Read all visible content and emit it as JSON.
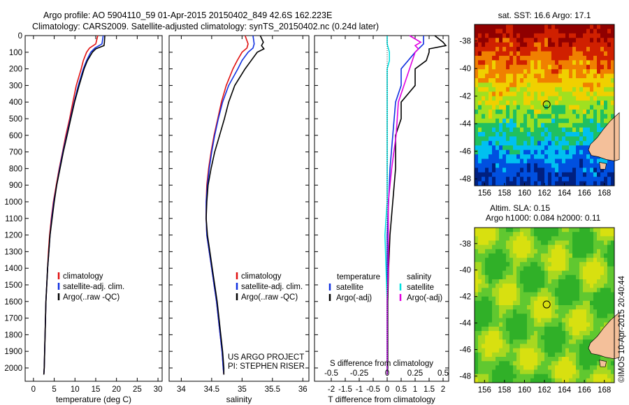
{
  "header": {
    "line1": "Argo profile: AO 5904110_59 01-Apr-2015 20150402_849 42.6S 162.223E",
    "line2": "Climatology: CARS2009. Satellite-adjusted climatology: synTS_20150402.nc (0.24d later)"
  },
  "colors": {
    "climatology": "#e01010",
    "satellite_temperature": "#1030e0",
    "argo": "#000000",
    "satellite_salinity": "#00e0e0",
    "argo_salinity_diff": "#e000e0",
    "land": "#f4c09a"
  },
  "chart_data": [
    {
      "type": "line",
      "id": "temperature",
      "xlabel": "temperature (deg C)",
      "ylabel": "",
      "xlim": [
        -2,
        31
      ],
      "ylim": [
        2080,
        0
      ],
      "xticks": [
        "0",
        "5",
        "10",
        "15",
        "20",
        "25",
        "30"
      ],
      "yticks": [
        "0",
        "100",
        "200",
        "300",
        "400",
        "500",
        "600",
        "700",
        "800",
        "900",
        "1000",
        "1100",
        "1200",
        "1300",
        "1400",
        "1500",
        "1600",
        "1700",
        "1800",
        "1900",
        "2000"
      ],
      "legend": [
        "climatology",
        "satellite-adj. clim.",
        "Argo(..raw -QC)"
      ],
      "series": [
        {
          "name": "climatology",
          "color": "#e01010",
          "depth": [
            0,
            50,
            75,
            100,
            150,
            200,
            300,
            400,
            500,
            600,
            700,
            800,
            900,
            1000,
            1100,
            1200,
            1300,
            1400,
            1500,
            1600,
            1700,
            1800,
            1900,
            2000,
            2040
          ],
          "values": [
            15.5,
            15.0,
            13.5,
            12.8,
            12.0,
            11.5,
            10.3,
            9.5,
            8.7,
            7.8,
            7.0,
            6.2,
            5.5,
            4.8,
            4.3,
            3.9,
            3.6,
            3.4,
            3.2,
            3.0,
            2.9,
            2.8,
            2.7,
            2.6,
            2.5
          ]
        },
        {
          "name": "satellite-adj. clim.",
          "color": "#1030e0",
          "depth": [
            0,
            50,
            75,
            100,
            150,
            200,
            300,
            400,
            500,
            600,
            700,
            800,
            900,
            1000,
            1100,
            1200,
            1300,
            1400,
            1500,
            1600,
            1700,
            1800,
            1900,
            2000,
            2040
          ],
          "values": [
            16.8,
            16.5,
            14.8,
            13.8,
            12.8,
            12.0,
            10.8,
            9.8,
            8.9,
            8.0,
            7.1,
            6.3,
            5.6,
            4.9,
            4.4,
            4.0,
            3.7,
            3.4,
            3.2,
            3.0,
            2.9,
            2.8,
            2.7,
            2.6,
            2.5
          ]
        },
        {
          "name": "Argo(..raw -QC)",
          "color": "#000000",
          "depth": [
            0,
            40,
            60,
            80,
            100,
            150,
            200,
            300,
            400,
            500,
            600,
            700,
            800,
            900,
            1000,
            1100,
            1200,
            1300,
            1400,
            1500,
            1600,
            1700,
            1800,
            1900,
            2000,
            2040
          ],
          "values": [
            17.2,
            17.1,
            17.0,
            15.0,
            14.2,
            13.0,
            12.2,
            11.0,
            9.9,
            9.0,
            8.1,
            7.2,
            6.4,
            5.6,
            5.0,
            4.5,
            4.0,
            3.7,
            3.4,
            3.2,
            3.0,
            2.9,
            2.8,
            2.7,
            2.6,
            2.5
          ]
        }
      ]
    },
    {
      "type": "line",
      "id": "salinity",
      "xlabel": "salinity",
      "ylabel": "",
      "xlim": [
        33.8,
        36.1
      ],
      "ylim": [
        2080,
        0
      ],
      "xticks": [
        "34",
        "34.5",
        "35",
        "35.5",
        "36"
      ],
      "legend": [
        "climatology",
        "satellite-adj. clim.",
        "Argo(..raw -QC)"
      ],
      "series": [
        {
          "name": "climatology",
          "color": "#e01010",
          "depth": [
            0,
            50,
            75,
            100,
            150,
            200,
            300,
            400,
            500,
            600,
            700,
            800,
            900,
            1000,
            1100,
            1200,
            1300,
            1400,
            1500,
            1600,
            1700,
            1800,
            1900,
            2000,
            2040
          ],
          "values": [
            35.05,
            35.1,
            35.08,
            35.0,
            34.92,
            34.85,
            34.74,
            34.66,
            34.6,
            34.54,
            34.49,
            34.45,
            34.42,
            34.41,
            34.41,
            34.42,
            34.46,
            34.5,
            34.54,
            34.58,
            34.61,
            34.64,
            34.67,
            34.69,
            34.7
          ]
        },
        {
          "name": "satellite-adj. clim.",
          "color": "#1030e0",
          "depth": [
            0,
            50,
            75,
            100,
            150,
            200,
            300,
            400,
            500,
            600,
            700,
            800,
            900,
            1000,
            1100,
            1200,
            1300,
            1400,
            1500,
            1600,
            1700,
            1800,
            1900,
            2000,
            2040
          ],
          "values": [
            35.18,
            35.2,
            35.18,
            35.1,
            35.0,
            34.93,
            34.78,
            34.68,
            34.61,
            34.55,
            34.5,
            34.46,
            34.43,
            34.41,
            34.41,
            34.42,
            34.46,
            34.5,
            34.54,
            34.58,
            34.61,
            34.64,
            34.67,
            34.69,
            34.7
          ]
        },
        {
          "name": "Argo(..raw -QC)",
          "color": "#000000",
          "depth": [
            0,
            40,
            60,
            80,
            100,
            150,
            200,
            300,
            400,
            500,
            600,
            700,
            800,
            900,
            1000,
            1100,
            1200,
            1300,
            1400,
            1500,
            1600,
            1700,
            1800,
            1900,
            2000,
            2040
          ],
          "values": [
            35.3,
            35.35,
            35.32,
            35.36,
            35.25,
            35.15,
            35.05,
            34.88,
            34.78,
            34.71,
            34.63,
            34.55,
            34.49,
            34.44,
            34.42,
            34.41,
            34.43,
            34.47,
            34.51,
            34.55,
            34.59,
            34.62,
            34.65,
            34.68,
            34.7,
            34.7
          ]
        }
      ],
      "annotations": [
        "US ARGO PROJECT",
        "PI: STEPHEN RISER"
      ]
    },
    {
      "type": "line",
      "id": "difference",
      "xlabel": "T difference from climatology",
      "x2label": "S difference from climatology",
      "xlim": [
        -2.6,
        2.2
      ],
      "x2lim": [
        -0.65,
        0.55
      ],
      "ylim": [
        2080,
        0
      ],
      "xticks": [
        "-2",
        "-1.5",
        "-1",
        "-0.5",
        "0",
        "0.5",
        "1",
        "1.5",
        "2"
      ],
      "x2ticks": [
        "-0.5",
        "-0.25",
        "0",
        "0.25",
        "0.5"
      ],
      "legend": {
        "temperature_title": "temperature",
        "salinity_title": "salinity",
        "temperature_items": [
          "satellite",
          "Argo(-adj)"
        ],
        "salinity_items": [
          "satellite",
          "Argo(-adj)"
        ]
      },
      "series": [
        {
          "name": "satellite",
          "color": "#1030e0",
          "axis": "T",
          "depth": [
            0,
            50,
            100,
            200,
            300,
            400,
            600,
            800,
            1000,
            1200,
            1400,
            1600,
            1800,
            2000,
            2040
          ],
          "values": [
            1.3,
            1.3,
            1.0,
            0.5,
            0.5,
            0.3,
            0.2,
            0.1,
            0.05,
            0.0,
            0.0,
            0.0,
            0.0,
            0.0,
            0.0
          ]
        },
        {
          "name": "Argo(-adj)",
          "color": "#000000",
          "axis": "T",
          "depth": [
            0,
            40,
            60,
            80,
            100,
            150,
            200,
            300,
            400,
            500,
            600,
            800,
            1000,
            1200,
            1400,
            1600,
            1800,
            2000,
            2040
          ],
          "values": [
            1.7,
            2.0,
            2.1,
            1.5,
            1.5,
            1.4,
            1.0,
            1.0,
            0.5,
            0.5,
            0.3,
            0.3,
            0.2,
            0.1,
            0.05,
            0.02,
            0.02,
            0.02,
            0.0
          ]
        },
        {
          "name": "satellite",
          "color": "#00e0e0",
          "axis": "S",
          "depth": [
            0,
            50,
            100,
            150,
            200,
            300,
            400,
            600,
            800,
            1000,
            1200,
            1400,
            1600,
            1800,
            2000,
            2040
          ],
          "values": [
            0.0,
            0.0,
            0.02,
            0.02,
            0.0,
            0.0,
            0.0,
            0.0,
            0.0,
            0.0,
            -0.02,
            -0.01,
            0.0,
            0.0,
            0.0,
            0.0
          ]
        },
        {
          "name": "Argo(-adj)",
          "color": "#e000e0",
          "axis": "S",
          "depth": [
            0,
            40,
            60,
            80,
            100,
            200,
            300,
            400,
            600,
            800,
            1000,
            1200,
            1400,
            1600,
            1800,
            2000,
            2040
          ],
          "values": [
            0.2,
            0.3,
            0.25,
            0.28,
            0.25,
            0.2,
            0.15,
            0.1,
            0.08,
            0.04,
            0.01,
            0.01,
            0.01,
            0.0,
            0.0,
            0.0,
            0.0
          ]
        }
      ]
    },
    {
      "type": "heatmap",
      "id": "sst-map",
      "title": "sat. SST: 16.6  Argo: 17.1",
      "xlim": [
        155,
        169
      ],
      "ylim": [
        -48.5,
        -36.8
      ],
      "xticks": [
        "156",
        "158",
        "160",
        "162",
        "164",
        "166",
        "168"
      ],
      "yticks": [
        "-38",
        "-40",
        "-42",
        "-44",
        "-46",
        "-48"
      ],
      "marker": {
        "lon": 162.223,
        "lat": -42.6
      },
      "colorscale": [
        "#002080",
        "#0050e0",
        "#00c0f0",
        "#20c060",
        "#a0e020",
        "#f0d000",
        "#f08000",
        "#d02000",
        "#900000"
      ]
    },
    {
      "type": "heatmap",
      "id": "sla-map",
      "title": "Altim. SLA: 0.15",
      "subtitle": "Argo h1000: 0.084 h2000: 0.11",
      "xlim": [
        155,
        169
      ],
      "ylim": [
        -48.5,
        -36.8
      ],
      "xticks": [
        "156",
        "158",
        "160",
        "162",
        "164",
        "166",
        "168"
      ],
      "yticks": [
        "-38",
        "-40",
        "-42",
        "-44",
        "-46",
        "-48"
      ],
      "marker": {
        "lon": 162.223,
        "lat": -42.6
      }
    }
  ],
  "footer": {
    "credit": "©IMOS 10-Apr-2015 20:40:44"
  }
}
